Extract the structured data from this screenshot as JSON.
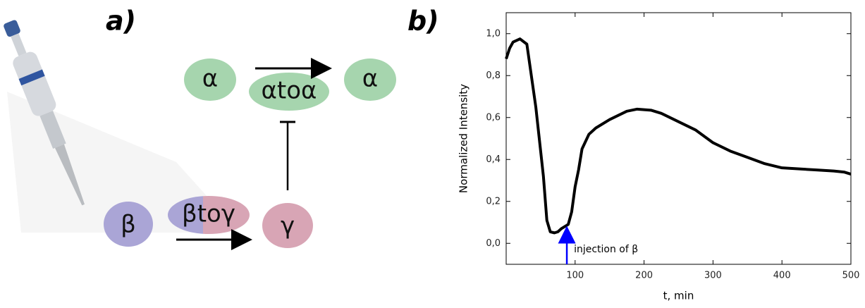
{
  "panel_labels": [
    "a)",
    "b)"
  ],
  "diagram": {
    "nodes": [
      {
        "label": "α"
      },
      {
        "label": "αtoα"
      },
      {
        "label": "α"
      },
      {
        "label": "β"
      },
      {
        "label": "βtoγ"
      },
      {
        "label": "γ"
      }
    ]
  },
  "chart_data": {
    "type": "line",
    "x": [
      0,
      5,
      10,
      20,
      30,
      43,
      54,
      59,
      64,
      70,
      75,
      80,
      85,
      90,
      95,
      100,
      105,
      110,
      120,
      130,
      150,
      175,
      190,
      210,
      225,
      250,
      275,
      300,
      325,
      350,
      375,
      400,
      425,
      450,
      475,
      490,
      500
    ],
    "values": [
      0.88,
      0.93,
      0.96,
      0.975,
      0.95,
      0.65,
      0.32,
      0.11,
      0.055,
      0.05,
      0.055,
      0.07,
      0.08,
      0.09,
      0.15,
      0.27,
      0.35,
      0.45,
      0.52,
      0.55,
      0.59,
      0.63,
      0.64,
      0.635,
      0.62,
      0.58,
      0.54,
      0.48,
      0.44,
      0.41,
      0.38,
      0.36,
      0.355,
      0.35,
      0.345,
      0.34,
      0.33
    ],
    "color": "#000000",
    "xlabel": "t, min",
    "ylabel": "Normalized Intensity",
    "xlim": [
      0,
      500
    ],
    "xticks": [
      100,
      200,
      300,
      400,
      500
    ],
    "ylim": [
      -0.1,
      1.1
    ],
    "yticks": [
      {
        "value": 0,
        "label": "0,0"
      },
      {
        "value": 0.2,
        "label": "0,2"
      },
      {
        "value": 0.4,
        "label": "0,4"
      },
      {
        "value": 0.6,
        "label": "0,6"
      },
      {
        "value": 0.8,
        "label": "0,8"
      },
      {
        "value": 1,
        "label": "1,0"
      }
    ],
    "annotation": {
      "text": "injection of β",
      "x": 88,
      "color": "#0000ff"
    }
  }
}
